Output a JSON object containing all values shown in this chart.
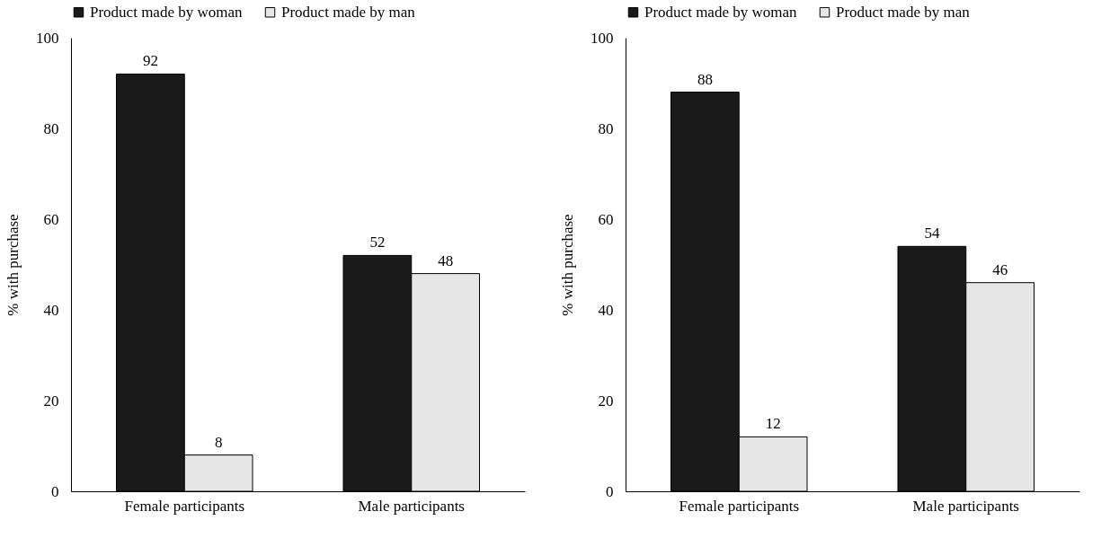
{
  "chart_data": [
    {
      "type": "bar",
      "categories": [
        "Female participants",
        "Male participants"
      ],
      "ylabel": "% with purchase",
      "ylim": [
        0,
        100
      ],
      "yticks": [
        0,
        20,
        40,
        60,
        80,
        100
      ],
      "legend": "top left",
      "data_labels": true,
      "series": [
        {
          "name": "Product made by woman",
          "color": "#1a1a1a",
          "values": [
            92,
            52
          ]
        },
        {
          "name": "Product made by man",
          "color": "#e6e6e6",
          "values": [
            8,
            48
          ]
        }
      ]
    },
    {
      "type": "bar",
      "categories": [
        "Female participants",
        "Male participants"
      ],
      "ylabel": "% with purchase",
      "ylim": [
        0,
        100
      ],
      "yticks": [
        0,
        20,
        40,
        60,
        80,
        100
      ],
      "legend": "top left",
      "data_labels": true,
      "series": [
        {
          "name": "Product made by woman",
          "color": "#1a1a1a",
          "values": [
            88,
            54
          ]
        },
        {
          "name": "Product made by man",
          "color": "#e6e6e6",
          "values": [
            12,
            46
          ]
        }
      ]
    }
  ]
}
